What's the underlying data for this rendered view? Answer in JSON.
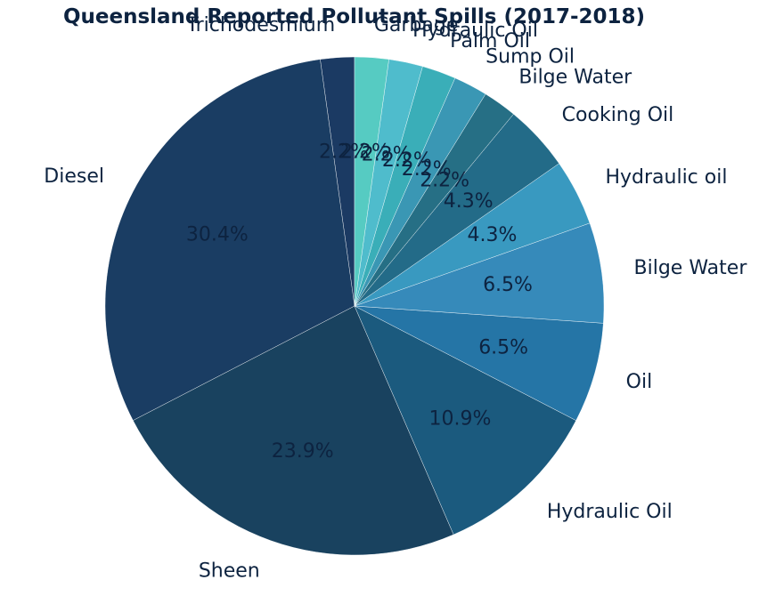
{
  "chart_data": {
    "type": "pie",
    "title": "Queensland Reported Pollutant Spills (2017-2018)",
    "start_angle_deg": 90,
    "direction": "counterclockwise",
    "slices": [
      {
        "label": "Trichodesmium",
        "value": 2.2,
        "pct": "2.2%",
        "color": "#1b3a63"
      },
      {
        "label": "Diesel",
        "value": 30.4,
        "pct": "30.4%",
        "color": "#1a3d63"
      },
      {
        "label": "Sheen",
        "value": 23.9,
        "pct": "23.9%",
        "color": "#19425f"
      },
      {
        "label": "Hydraulic Oil",
        "value": 10.9,
        "pct": "10.9%",
        "color": "#1b5a7e"
      },
      {
        "label": "Oil",
        "value": 6.5,
        "pct": "6.5%",
        "color": "#2575a6"
      },
      {
        "label": "Bilge Water",
        "value": 6.5,
        "pct": "6.5%",
        "color": "#368aba"
      },
      {
        "label": "Hydraulic oil",
        "value": 4.3,
        "pct": "4.3%",
        "color": "#3999c0"
      },
      {
        "label": "Cooking Oil",
        "value": 4.3,
        "pct": "4.3%",
        "color": "#236b88"
      },
      {
        "label": "Bilge Water",
        "value": 2.2,
        "pct": "2.2%",
        "color": "#266f85"
      },
      {
        "label": "Sump Oil",
        "value": 2.2,
        "pct": "2.2%",
        "color": "#3a97b4"
      },
      {
        "label": "Palm Oil",
        "value": 2.2,
        "pct": "2.2%",
        "color": "#3aaeb8"
      },
      {
        "label": "Hydraulic Oil",
        "value": 2.2,
        "pct": "2.2%",
        "color": "#4fbccc"
      },
      {
        "label": "Garbage",
        "value": 2.2,
        "pct": "2.2%",
        "color": "#56cbc2"
      }
    ]
  }
}
